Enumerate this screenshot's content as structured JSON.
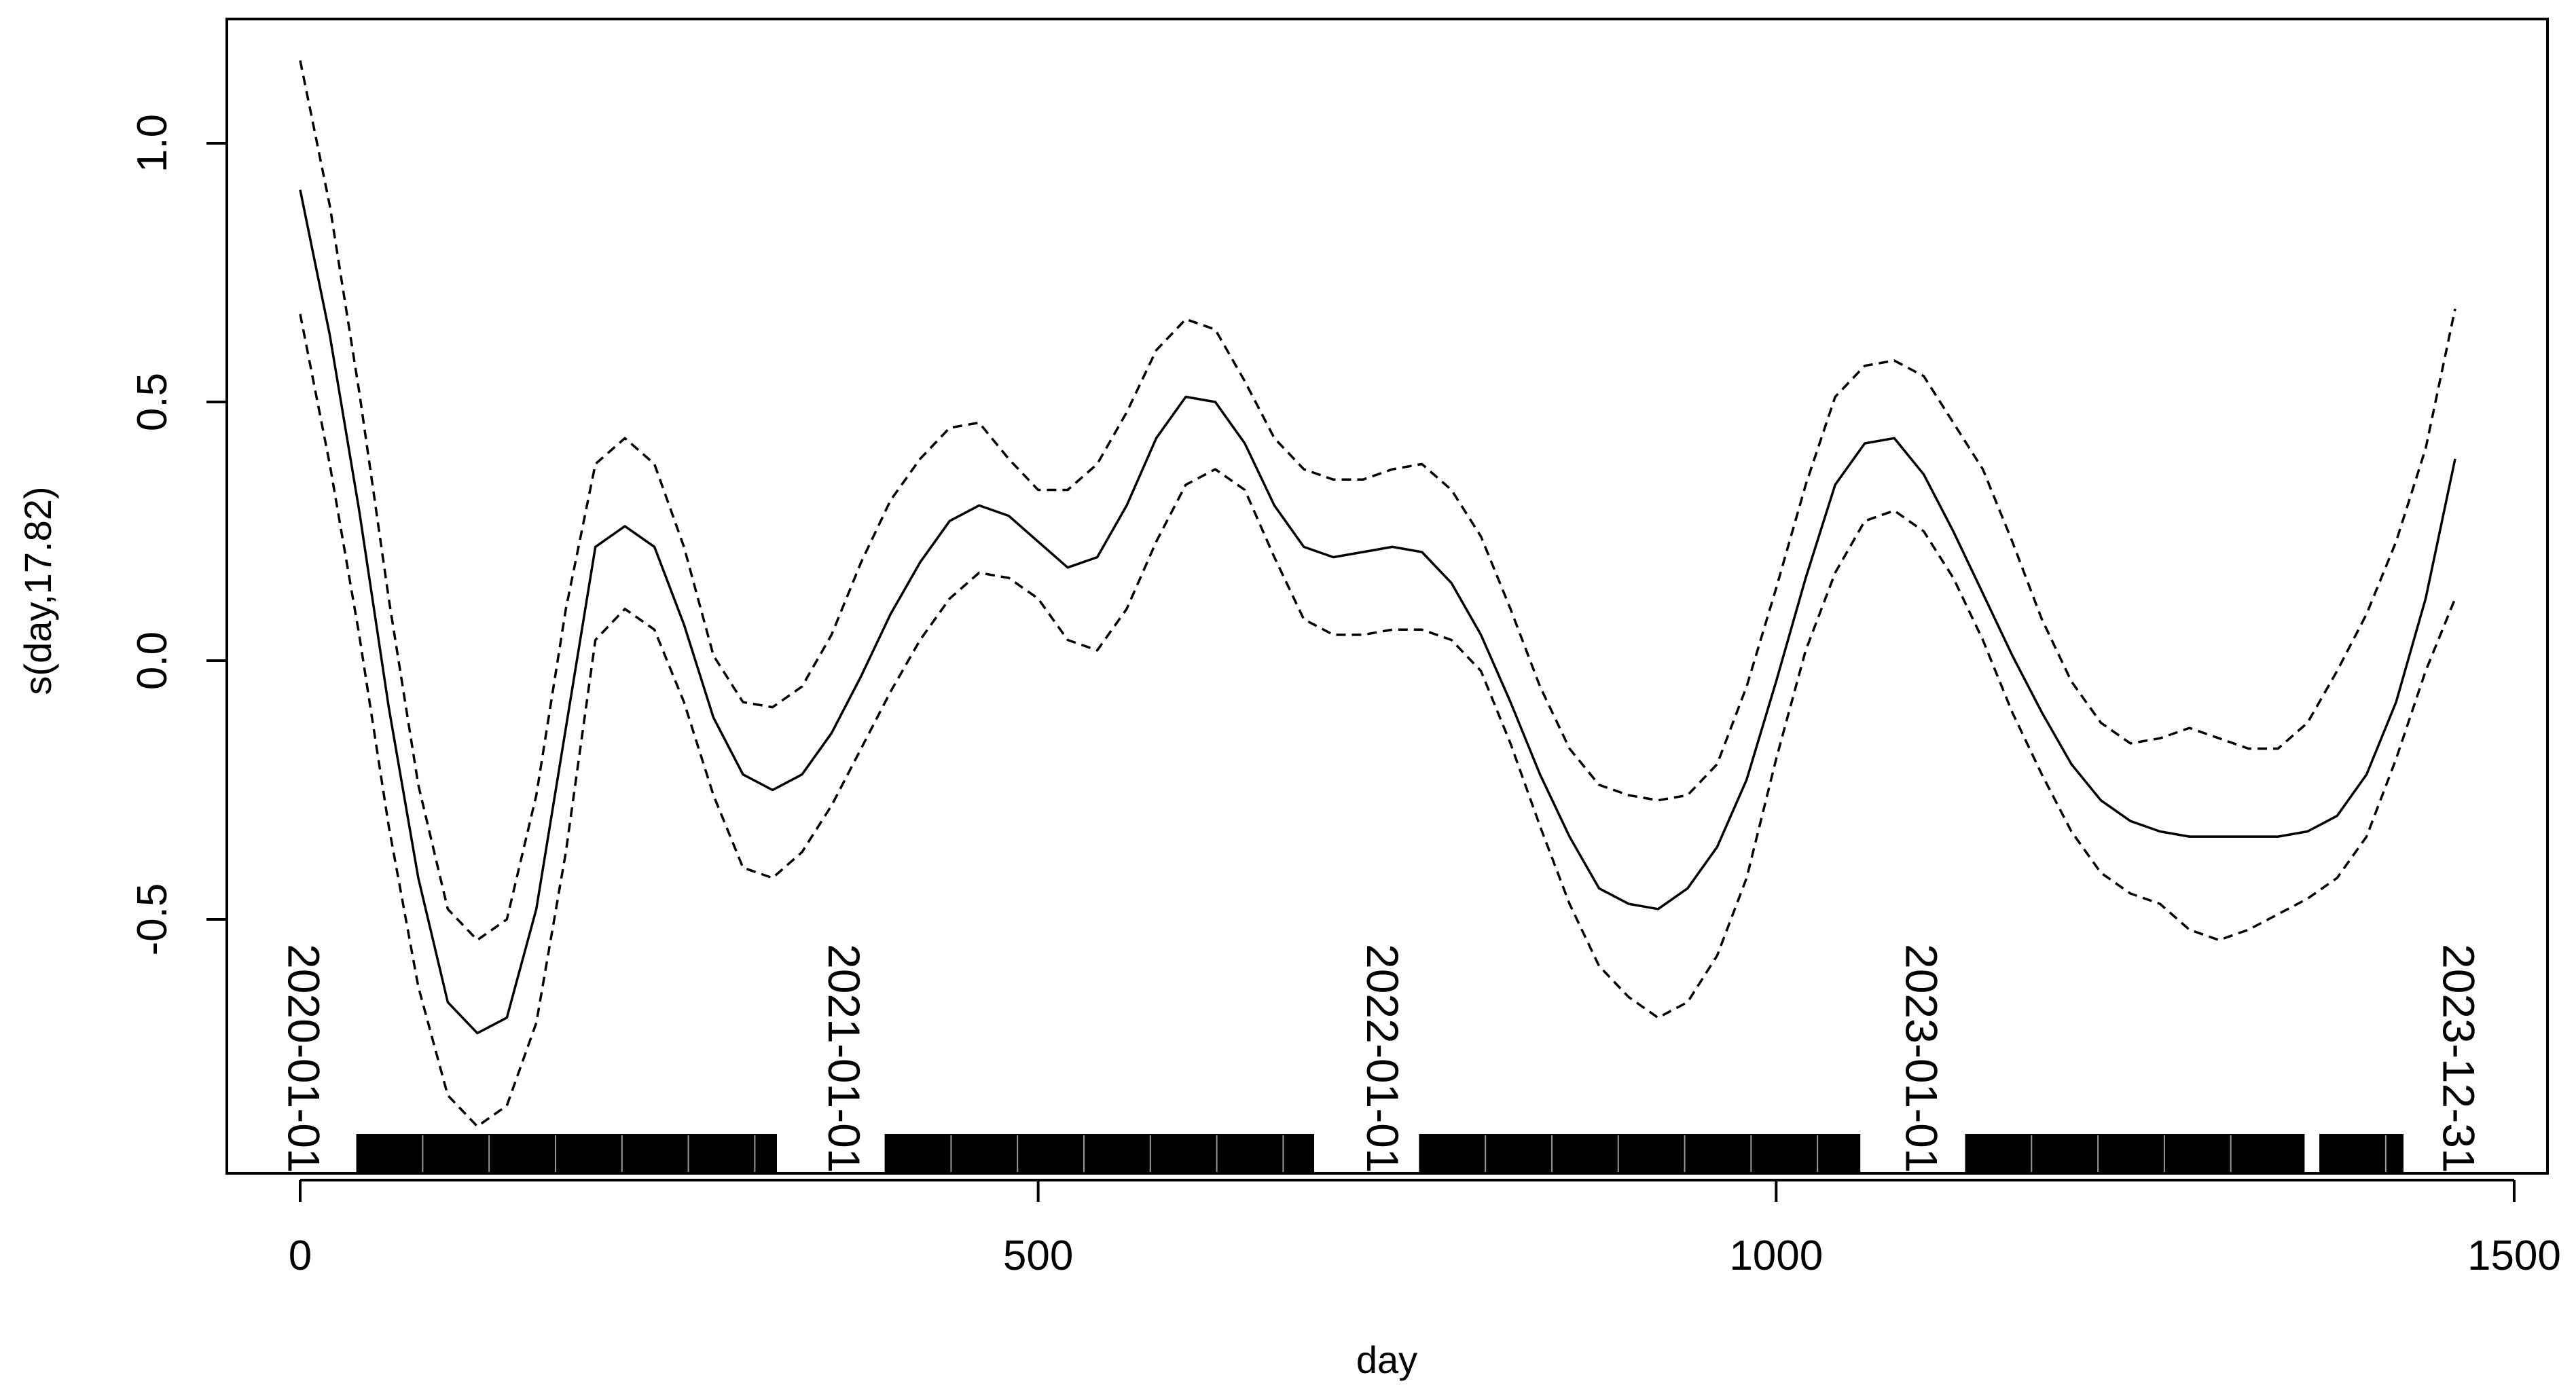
{
  "chart_data": {
    "type": "line",
    "xlabel": "day",
    "ylabel": "s(day,17.82)",
    "xlim": [
      0,
      1500
    ],
    "ylim": [
      -1.0,
      1.25
    ],
    "x_ticks": [
      0,
      500,
      1000,
      1500
    ],
    "y_ticks": [
      -0.5,
      0.0,
      0.5,
      1.0
    ],
    "x_tick_labels": [
      "0",
      "500",
      "1000",
      "1500"
    ],
    "y_tick_labels": [
      "-0.5",
      "0.0",
      "0.5",
      "1.0"
    ],
    "colors": {
      "line": "#000000",
      "background": "#ffffff"
    },
    "series": [
      {
        "style": "solid",
        "x": [
          0,
          20,
          40,
          60,
          80,
          100,
          120,
          140,
          160,
          180,
          200,
          220,
          240,
          260,
          280,
          300,
          320,
          340,
          360,
          380,
          400,
          420,
          440,
          460,
          480,
          500,
          520,
          540,
          560,
          580,
          600,
          620,
          640,
          660,
          680,
          700,
          720,
          740,
          760,
          780,
          800,
          820,
          840,
          860,
          880,
          900,
          920,
          940,
          960,
          980,
          1000,
          1020,
          1040,
          1060,
          1080,
          1100,
          1120,
          1140,
          1160,
          1180,
          1200,
          1220,
          1240,
          1260,
          1280,
          1300,
          1320,
          1340,
          1360,
          1380,
          1400,
          1420,
          1440,
          1460
        ],
        "values": [
          0.91,
          0.63,
          0.29,
          -0.09,
          -0.42,
          -0.66,
          -0.72,
          -0.69,
          -0.48,
          -0.13,
          0.22,
          0.26,
          0.22,
          0.07,
          -0.11,
          -0.22,
          -0.25,
          -0.22,
          -0.14,
          -0.03,
          0.09,
          0.19,
          0.27,
          0.3,
          0.28,
          0.23,
          0.18,
          0.2,
          0.3,
          0.43,
          0.51,
          0.5,
          0.42,
          0.3,
          0.22,
          0.2,
          0.21,
          0.22,
          0.21,
          0.15,
          0.05,
          -0.08,
          -0.22,
          -0.34,
          -0.44,
          -0.47,
          -0.48,
          -0.44,
          -0.36,
          -0.23,
          -0.04,
          0.16,
          0.34,
          0.42,
          0.43,
          0.36,
          0.25,
          0.13,
          0.01,
          -0.1,
          -0.2,
          -0.27,
          -0.31,
          -0.33,
          -0.34,
          -0.34,
          -0.34,
          -0.34,
          -0.33,
          -0.3,
          -0.22,
          -0.08,
          0.12,
          0.39
        ]
      },
      {
        "style": "dashed",
        "x": [
          0,
          20,
          40,
          60,
          80,
          100,
          120,
          140,
          160,
          180,
          200,
          220,
          240,
          260,
          280,
          300,
          320,
          340,
          360,
          380,
          400,
          420,
          440,
          460,
          480,
          500,
          520,
          540,
          560,
          580,
          600,
          620,
          640,
          660,
          680,
          700,
          720,
          740,
          760,
          780,
          800,
          820,
          840,
          860,
          880,
          900,
          920,
          940,
          960,
          980,
          1000,
          1020,
          1040,
          1060,
          1080,
          1100,
          1120,
          1140,
          1160,
          1180,
          1200,
          1220,
          1240,
          1260,
          1280,
          1300,
          1320,
          1340,
          1360,
          1380,
          1400,
          1420,
          1440,
          1460
        ],
        "values": [
          1.16,
          0.88,
          0.52,
          0.12,
          -0.24,
          -0.48,
          -0.54,
          -0.5,
          -0.26,
          0.1,
          0.38,
          0.43,
          0.38,
          0.22,
          0.01,
          -0.08,
          -0.09,
          -0.05,
          0.05,
          0.19,
          0.31,
          0.39,
          0.45,
          0.46,
          0.39,
          0.33,
          0.33,
          0.38,
          0.48,
          0.6,
          0.66,
          0.64,
          0.54,
          0.43,
          0.37,
          0.35,
          0.35,
          0.37,
          0.38,
          0.33,
          0.24,
          0.1,
          -0.05,
          -0.17,
          -0.24,
          -0.26,
          -0.27,
          -0.26,
          -0.2,
          -0.05,
          0.14,
          0.34,
          0.51,
          0.57,
          0.58,
          0.55,
          0.46,
          0.37,
          0.23,
          0.08,
          -0.04,
          -0.12,
          -0.16,
          -0.15,
          -0.13,
          -0.15,
          -0.17,
          -0.17,
          -0.12,
          -0.02,
          0.09,
          0.23,
          0.41,
          0.68
        ]
      },
      {
        "style": "dashed",
        "x": [
          0,
          20,
          40,
          60,
          80,
          100,
          120,
          140,
          160,
          180,
          200,
          220,
          240,
          260,
          280,
          300,
          320,
          340,
          360,
          380,
          400,
          420,
          440,
          460,
          480,
          500,
          520,
          540,
          560,
          580,
          600,
          620,
          640,
          660,
          680,
          700,
          720,
          740,
          760,
          780,
          800,
          820,
          840,
          860,
          880,
          900,
          920,
          940,
          960,
          980,
          1000,
          1020,
          1040,
          1060,
          1080,
          1100,
          1120,
          1140,
          1160,
          1180,
          1200,
          1220,
          1240,
          1260,
          1280,
          1300,
          1320,
          1340,
          1360,
          1380,
          1400,
          1420,
          1440,
          1460
        ],
        "values": [
          0.67,
          0.38,
          0.05,
          -0.32,
          -0.63,
          -0.84,
          -0.9,
          -0.86,
          -0.7,
          -0.37,
          0.04,
          0.1,
          0.06,
          -0.08,
          -0.26,
          -0.4,
          -0.42,
          -0.37,
          -0.28,
          -0.17,
          -0.06,
          0.04,
          0.12,
          0.17,
          0.16,
          0.12,
          0.04,
          0.02,
          0.1,
          0.23,
          0.34,
          0.37,
          0.33,
          0.2,
          0.08,
          0.05,
          0.05,
          0.06,
          0.06,
          0.04,
          -0.02,
          -0.16,
          -0.32,
          -0.47,
          -0.59,
          -0.65,
          -0.69,
          -0.66,
          -0.57,
          -0.42,
          -0.19,
          0.02,
          0.17,
          0.27,
          0.29,
          0.25,
          0.16,
          0.04,
          -0.1,
          -0.22,
          -0.33,
          -0.41,
          -0.45,
          -0.47,
          -0.52,
          -0.54,
          -0.52,
          -0.49,
          -0.46,
          -0.42,
          -0.34,
          -0.19,
          -0.02,
          0.12
        ]
      }
    ],
    "date_annotations": [
      {
        "label": "2020-01-01",
        "x": 0
      },
      {
        "label": "2021-01-01",
        "x": 366
      },
      {
        "label": "2022-01-01",
        "x": 731
      },
      {
        "label": "2023-01-01",
        "x": 1096
      },
      {
        "label": "2023-12-31",
        "x": 1460
      }
    ],
    "rug_segments": [
      {
        "start": 38,
        "end": 323
      },
      {
        "start": 396,
        "end": 687
      },
      {
        "start": 758,
        "end": 1057
      },
      {
        "start": 1128,
        "end": 1358
      },
      {
        "start": 1368,
        "end": 1425
      }
    ]
  }
}
